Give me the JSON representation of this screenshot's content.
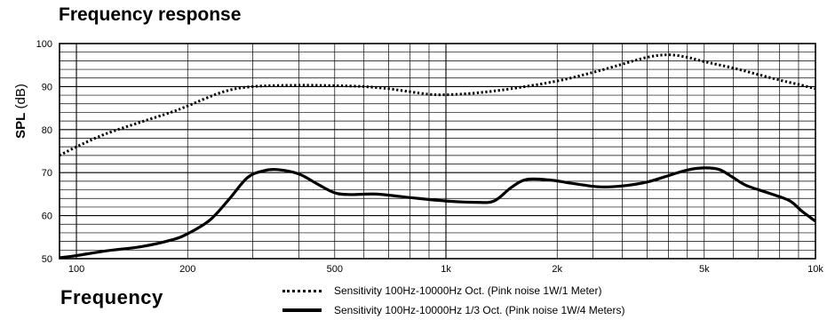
{
  "chart_data": {
    "type": "line",
    "title": "Frequency response",
    "xlabel": "Frequency",
    "ylabel_bold": "SPL",
    "ylabel_unit": "(dB)",
    "xscale": "log",
    "xlim": [
      90,
      10000
    ],
    "ylim": [
      50,
      100
    ],
    "grid": true,
    "legend_position": "bottom",
    "x_ticks": [
      {
        "value": 100,
        "label": "100"
      },
      {
        "value": 200,
        "label": "200"
      },
      {
        "value": 500,
        "label": "500"
      },
      {
        "value": 1000,
        "label": "1k"
      },
      {
        "value": 2000,
        "label": "2k"
      },
      {
        "value": 5000,
        "label": "5k"
      },
      {
        "value": 10000,
        "label": "10k"
      }
    ],
    "y_ticks": [
      50,
      60,
      70,
      80,
      90,
      100
    ],
    "series": [
      {
        "name": "Sensitivity 100Hz-10000Hz Oct. (Pink noise 1W/1 Meter)",
        "style": "dotted",
        "color": "#000000",
        "points": [
          [
            90,
            74
          ],
          [
            100,
            76
          ],
          [
            120,
            79
          ],
          [
            150,
            81.8
          ],
          [
            180,
            84
          ],
          [
            200,
            85.5
          ],
          [
            250,
            88.8
          ],
          [
            300,
            90
          ],
          [
            400,
            90.3
          ],
          [
            500,
            90.2
          ],
          [
            600,
            90
          ],
          [
            700,
            89.5
          ],
          [
            800,
            88.8
          ],
          [
            900,
            88.2
          ],
          [
            1000,
            88.1
          ],
          [
            1200,
            88.5
          ],
          [
            1500,
            89.5
          ],
          [
            2000,
            91.3
          ],
          [
            2500,
            93.3
          ],
          [
            3000,
            95.2
          ],
          [
            3500,
            96.8
          ],
          [
            4000,
            97.4
          ],
          [
            4500,
            96.8
          ],
          [
            5000,
            95.8
          ],
          [
            6000,
            94.3
          ],
          [
            7000,
            92.8
          ],
          [
            8000,
            91.5
          ],
          [
            9000,
            90.5
          ],
          [
            10000,
            89.5
          ]
        ]
      },
      {
        "name": "Sensitivity 100Hz-10000Hz 1/3 Oct. (Pink noise 1W/4 Meters)",
        "style": "solid",
        "color": "#000000",
        "points": [
          [
            90,
            50.2
          ],
          [
            100,
            50.7
          ],
          [
            120,
            51.8
          ],
          [
            150,
            52.8
          ],
          [
            180,
            54.3
          ],
          [
            200,
            55.8
          ],
          [
            230,
            59
          ],
          [
            260,
            64
          ],
          [
            290,
            68.8
          ],
          [
            320,
            70.4
          ],
          [
            350,
            70.7
          ],
          [
            400,
            69.7
          ],
          [
            450,
            67.3
          ],
          [
            500,
            65.3
          ],
          [
            550,
            64.9
          ],
          [
            650,
            65
          ],
          [
            800,
            64.2
          ],
          [
            1000,
            63.4
          ],
          [
            1200,
            63.1
          ],
          [
            1350,
            63.4
          ],
          [
            1500,
            66.5
          ],
          [
            1650,
            68.4
          ],
          [
            1900,
            68.3
          ],
          [
            2200,
            67.5
          ],
          [
            2600,
            66.7
          ],
          [
            3000,
            66.9
          ],
          [
            3500,
            67.8
          ],
          [
            4000,
            69.3
          ],
          [
            4500,
            70.6
          ],
          [
            5000,
            71.1
          ],
          [
            5500,
            70.7
          ],
          [
            6000,
            68.8
          ],
          [
            6500,
            67
          ],
          [
            7500,
            65.2
          ],
          [
            8500,
            63.5
          ],
          [
            9200,
            61
          ],
          [
            10000,
            58.7
          ]
        ]
      }
    ]
  }
}
